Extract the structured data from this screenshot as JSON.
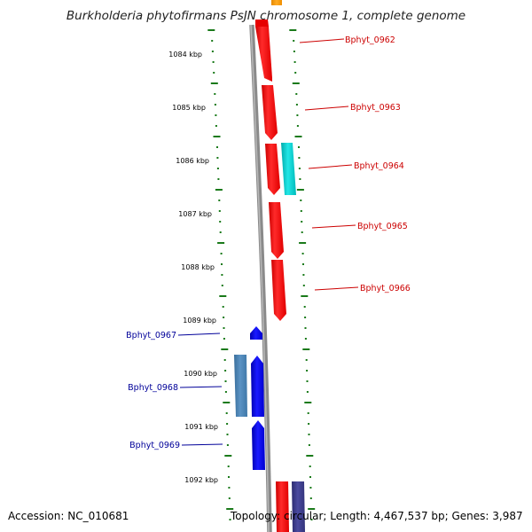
{
  "title": "Burkholderia phytofirmans PsJN chromosome 1, complete genome",
  "footer": {
    "accession": "Accession: NC_010681",
    "summary": "Topology: circular; Length: 4,467,537 bp; Genes: 3,987"
  },
  "ruler_labels": [
    "1084 kbp",
    "1085 kbp",
    "1086 kbp",
    "1087 kbp",
    "1088 kbp",
    "1089 kbp",
    "1090 kbp",
    "1091 kbp",
    "1092 kbp"
  ],
  "genes": [
    {
      "label": "Bphyt_0962",
      "strand": "forward",
      "color": "#ff0000"
    },
    {
      "label": "Bphyt_0963",
      "strand": "forward",
      "color": "#ff0000"
    },
    {
      "label": "Bphyt_0964",
      "strand": "forward",
      "color": "#ff0000"
    },
    {
      "label": "Bphyt_0965",
      "strand": "forward",
      "color": "#ff0000"
    },
    {
      "label": "Bphyt_0966",
      "strand": "forward",
      "color": "#ff0000"
    },
    {
      "label": "Bphyt_0967",
      "strand": "reverse",
      "color": "#0000ee"
    },
    {
      "label": "Bphyt_0968",
      "strand": "reverse",
      "color": "#0000ee"
    },
    {
      "label": "Bphyt_0969",
      "strand": "reverse",
      "color": "#0000ee"
    }
  ],
  "colors": {
    "forward_label": "#cc0000",
    "reverse_label": "#000099",
    "ruler_ticks": "#1a7a1a",
    "backbone": "#888888",
    "cds_forward": "#ff0000",
    "cds_reverse": "#0000ee",
    "feature_cyan": "#00cccc",
    "feature_steelblue": "#4682b4",
    "feature_orange": "#ff9900",
    "feature_navy": "#3a3a8a"
  }
}
